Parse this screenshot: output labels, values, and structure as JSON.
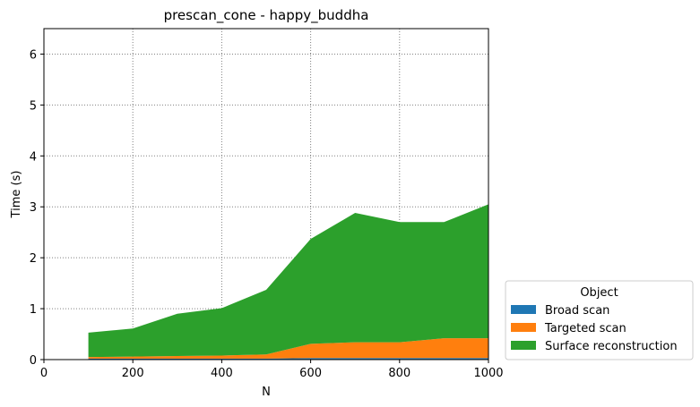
{
  "chart_data": {
    "type": "area",
    "stacked": true,
    "title": "prescan_cone - happy_buddha",
    "xlabel": "N",
    "ylabel": "Time (s)",
    "xlim": [
      0,
      1000
    ],
    "ylim": [
      0,
      6.5
    ],
    "x_ticks": [
      0,
      200,
      400,
      600,
      800,
      1000
    ],
    "y_ticks": [
      0,
      1,
      2,
      3,
      4,
      5,
      6
    ],
    "grid": true,
    "grid_style": "dotted",
    "x": [
      100,
      200,
      300,
      400,
      500,
      600,
      700,
      800,
      900,
      1000
    ],
    "series": [
      {
        "name": "Broad scan",
        "color": "#1f77b4",
        "values": [
          0.02,
          0.02,
          0.02,
          0.02,
          0.02,
          0.03,
          0.03,
          0.03,
          0.03,
          0.03
        ]
      },
      {
        "name": "Targeted scan",
        "color": "#ff7f0e",
        "values": [
          0.03,
          0.04,
          0.05,
          0.06,
          0.08,
          0.28,
          0.31,
          0.31,
          0.39,
          0.39
        ]
      },
      {
        "name": "Surface reconstruction",
        "color": "#2ca02c",
        "values": [
          0.48,
          0.55,
          0.83,
          0.93,
          1.27,
          2.06,
          2.54,
          2.36,
          2.28,
          2.63
        ]
      }
    ],
    "legend": {
      "title": "Object",
      "placement": "outside-lower-right"
    }
  }
}
